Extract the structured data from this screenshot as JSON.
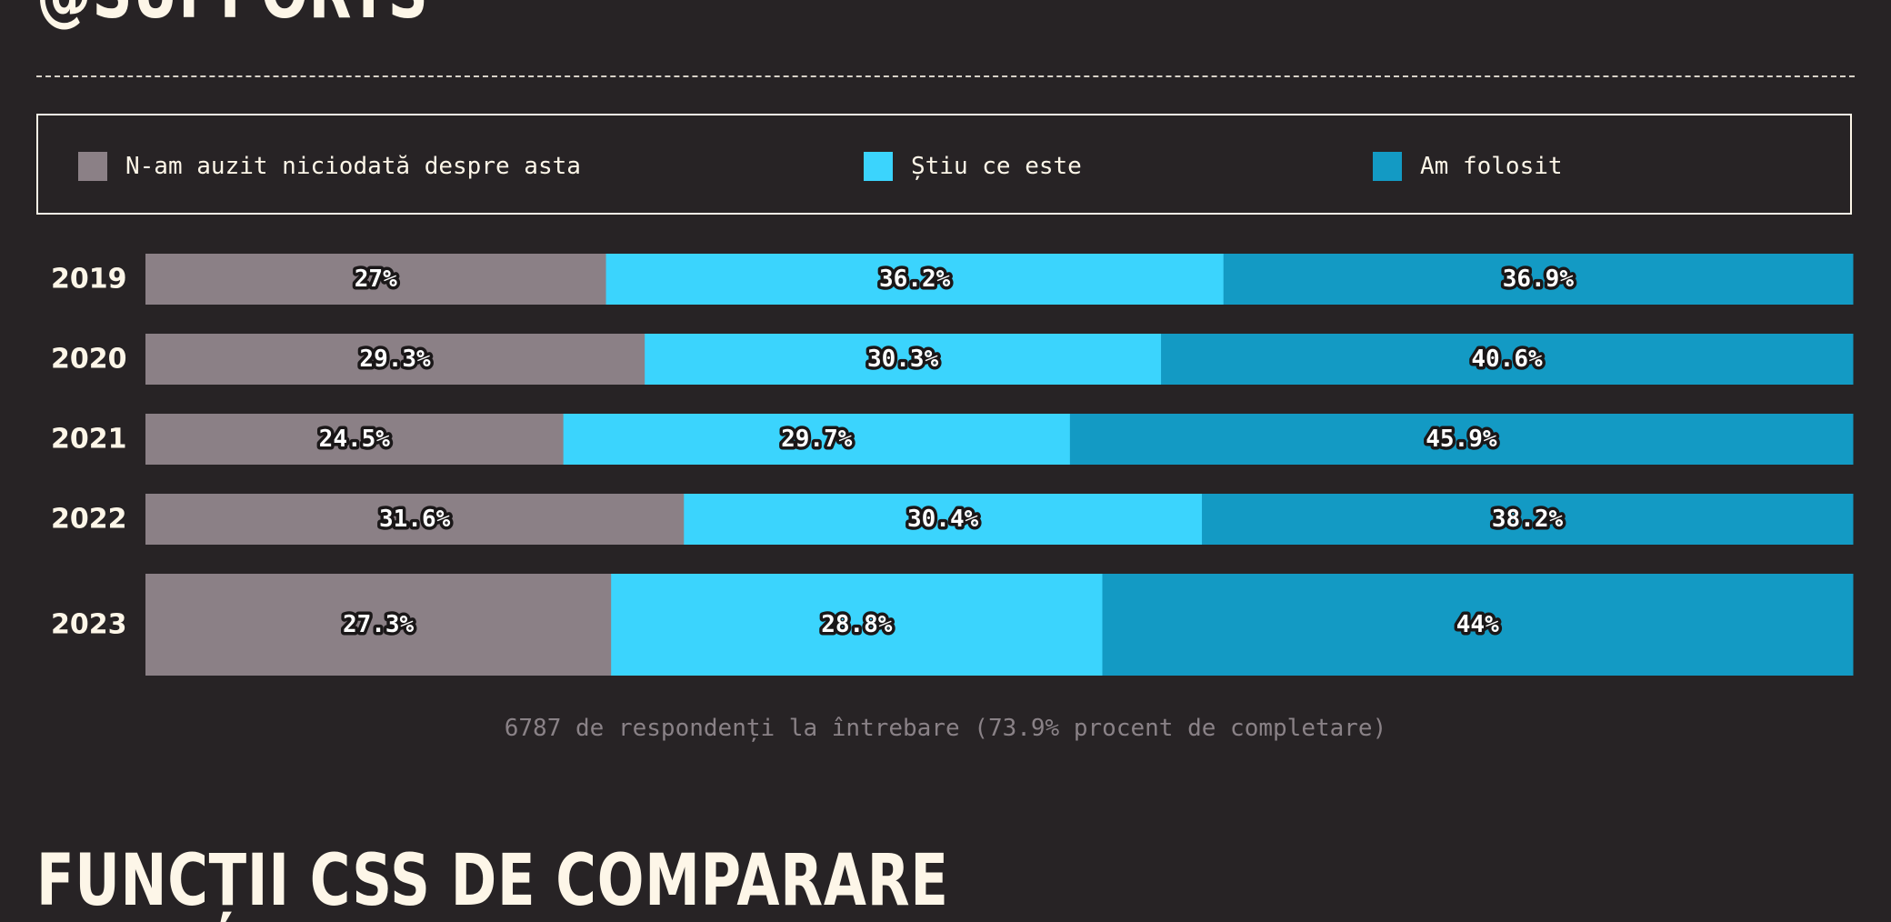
{
  "page": {
    "section_title_top": "@SUPPORTS",
    "section_title_bottom": "FUNCȚII CSS DE COMPARARE",
    "footnote": "6787 de respondenți la întrebare (73.9% procent de completare)"
  },
  "colors": {
    "background": "#272325",
    "never_heard": "#8b8086",
    "know_what": "#3bd4fd",
    "used": "#139ac4",
    "text": "#fdf6e8"
  },
  "chart_data": {
    "type": "bar",
    "orientation": "horizontal",
    "stacked": true,
    "normalized": true,
    "legend_position": "top",
    "categories": [
      "2019",
      "2020",
      "2021",
      "2022",
      "2023"
    ],
    "series": [
      {
        "name": "N-am auzit niciodată despre asta",
        "color": "#8b8086",
        "values": [
          27,
          29.3,
          24.5,
          31.6,
          27.3
        ],
        "labels": [
          "27%",
          "29.3%",
          "24.5%",
          "31.6%",
          "27.3%"
        ]
      },
      {
        "name": "Știu ce este",
        "color": "#3bd4fd",
        "values": [
          36.2,
          30.3,
          29.7,
          30.4,
          28.8
        ],
        "labels": [
          "36.2%",
          "30.3%",
          "29.7%",
          "30.4%",
          "28.8%"
        ]
      },
      {
        "name": "Am folosit",
        "color": "#139ac4",
        "values": [
          36.9,
          40.6,
          45.9,
          38.2,
          44
        ],
        "labels": [
          "36.9%",
          "40.6%",
          "45.9%",
          "38.2%",
          "44%"
        ]
      }
    ],
    "xlim": [
      0,
      100
    ],
    "grid": false
  }
}
